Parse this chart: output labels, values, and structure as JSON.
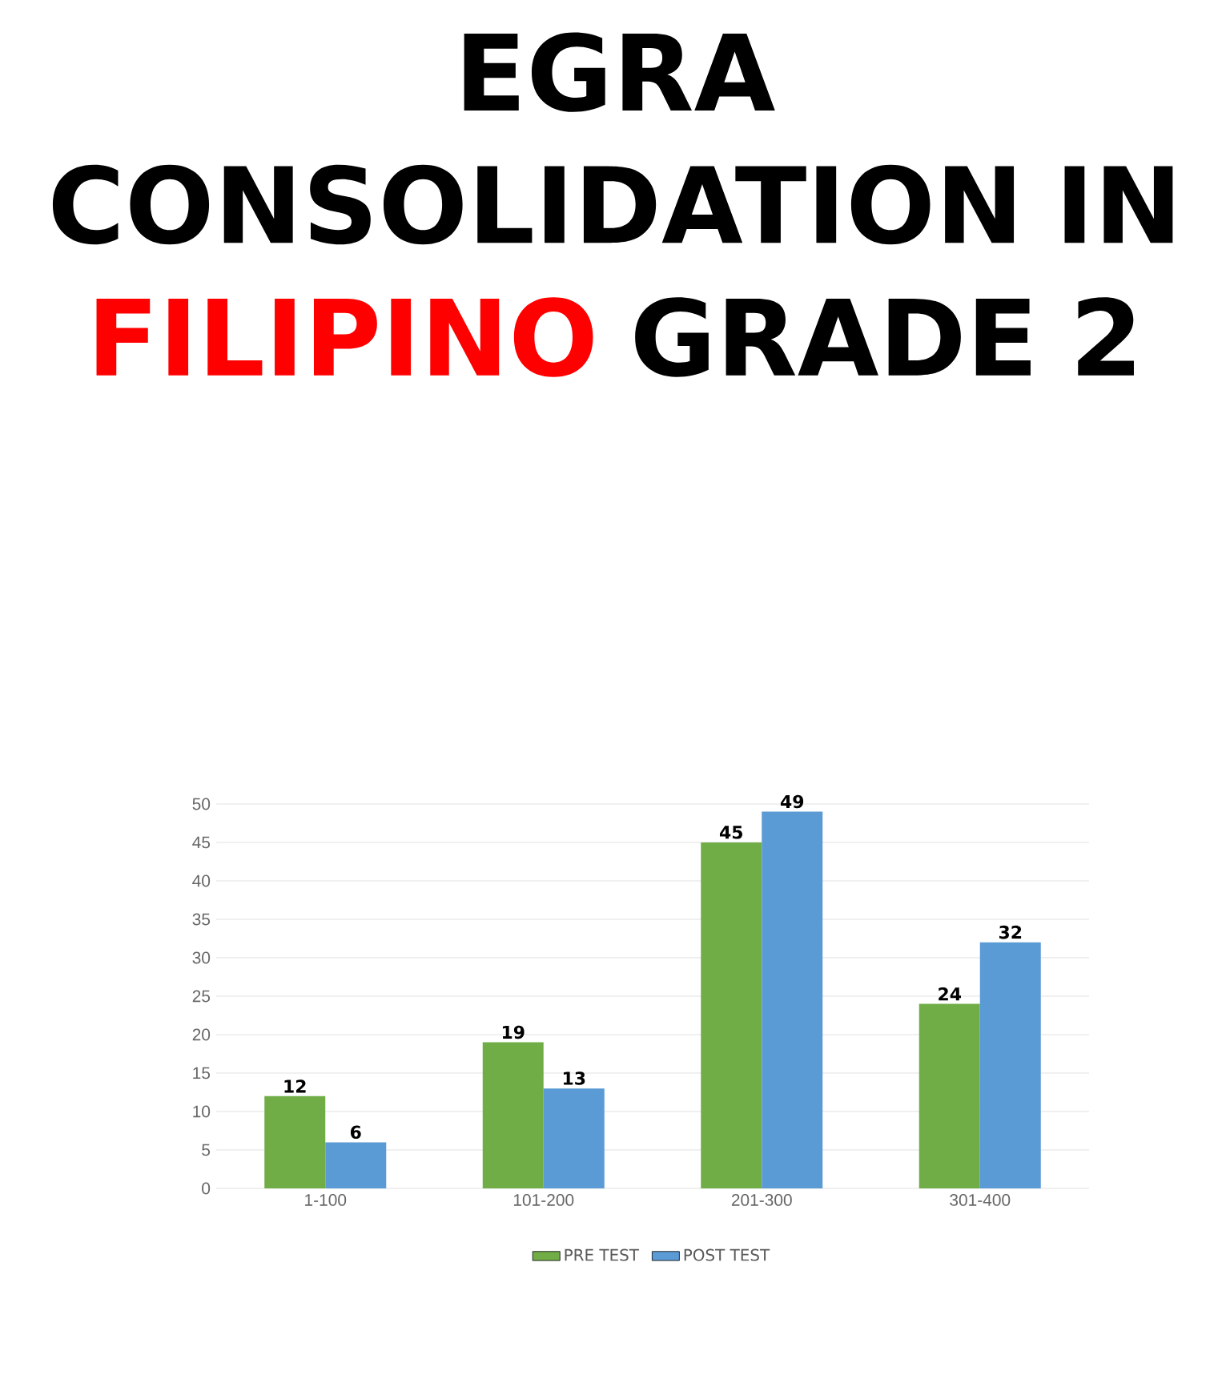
{
  "chart_data": {
    "type": "bar",
    "title": "EGRA CONSOLIDATION IN **FILIPINO** GRADE 2",
    "categories": [
      "1-100",
      "101-200",
      "201-300",
      "301-400"
    ],
    "series": [
      {
        "name": "PRE TEST",
        "color": "#70ad47",
        "values": [
          12,
          19,
          45,
          24
        ]
      },
      {
        "name": "POST TEST",
        "color": "#5b9bd5",
        "values": [
          6,
          13,
          49,
          32
        ]
      }
    ],
    "ylim": [
      0,
      50
    ],
    "yticks": [
      0,
      5,
      10,
      15,
      20,
      25,
      30,
      35,
      40,
      45,
      50
    ],
    "grid": "y",
    "legend": "bottom",
    "data_labels": true
  }
}
